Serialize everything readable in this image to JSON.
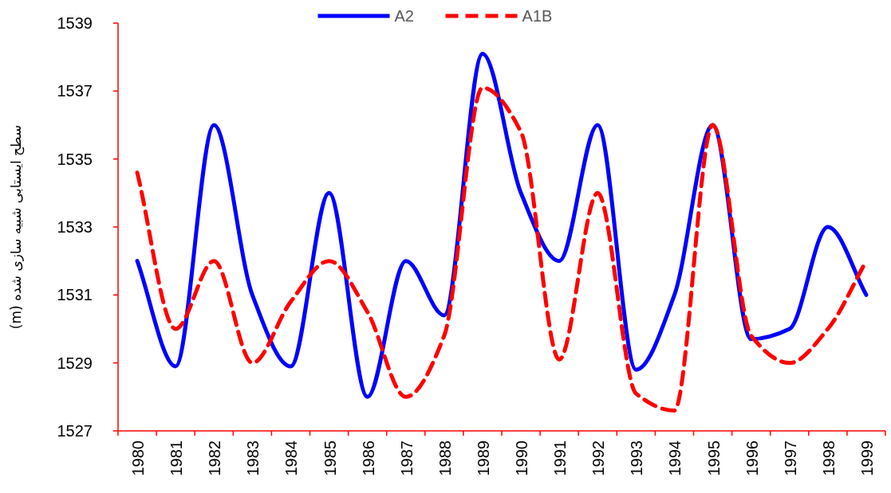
{
  "chart_data": {
    "type": "line",
    "ylabel": "سطح ایستابی شبیه سازی شده (m)",
    "categories": [
      "1980",
      "1981",
      "1982",
      "1983",
      "1984",
      "1985",
      "1986",
      "1987",
      "1988",
      "1989",
      "1990",
      "1991",
      "1992",
      "1993",
      "1994",
      "1995",
      "1996",
      "1997",
      "1998",
      "1999"
    ],
    "series": [
      {
        "name": "A2",
        "color": "#0000ff",
        "line_style": "solid",
        "values": [
          1532,
          1528.9,
          1536,
          1531,
          1528.9,
          1534,
          1528,
          1532,
          1530.4,
          1538.1,
          1534,
          1532,
          1536,
          1528.8,
          1531,
          1536,
          1529.7,
          1530,
          1533,
          1531
        ]
      },
      {
        "name": "A1B",
        "color": "#ff0000",
        "line_style": "dashed",
        "values": [
          1534.6,
          1530,
          1532,
          1529,
          1530.8,
          1532,
          1530.5,
          1528,
          1529.8,
          1537.1,
          1535.8,
          1529.1,
          1534,
          1528.1,
          1527.6,
          1536,
          1529.8,
          1529,
          1530,
          1532
        ]
      }
    ],
    "ylim": [
      1527,
      1539
    ],
    "yticks": [
      1527,
      1529,
      1531,
      1533,
      1535,
      1537,
      1539
    ],
    "grid": false,
    "legend": "top",
    "marker": "none"
  }
}
